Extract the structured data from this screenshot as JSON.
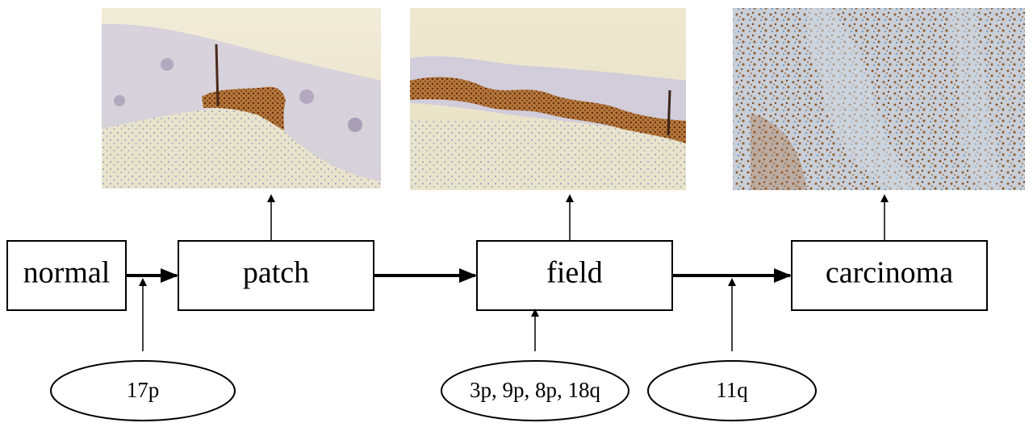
{
  "stages": [
    {
      "id": "normal",
      "label": "normal"
    },
    {
      "id": "patch",
      "label": "patch"
    },
    {
      "id": "field",
      "label": "field"
    },
    {
      "id": "carcinoma",
      "label": "carcinoma"
    }
  ],
  "genetic_events": [
    {
      "label": "17p",
      "between": [
        "normal",
        "patch"
      ]
    },
    {
      "label": "3p, 9p, 8p, 18q",
      "leads_to": "field"
    },
    {
      "label": "11q",
      "between": [
        "field",
        "carcinoma"
      ]
    }
  ],
  "micrographs": [
    {
      "stage": "patch",
      "name": "patch-micrograph"
    },
    {
      "stage": "field",
      "name": "field-micrograph"
    },
    {
      "stage": "carcinoma",
      "name": "carcinoma-micrograph"
    }
  ],
  "colors": {
    "line": "#000000",
    "box_fill": "#ffffff",
    "micrograph_background": "#ede6cf",
    "epithelium": "#c9c1d6",
    "stain_brown": "#8a4a1e",
    "stroma_blue": "#9fb3c8"
  }
}
